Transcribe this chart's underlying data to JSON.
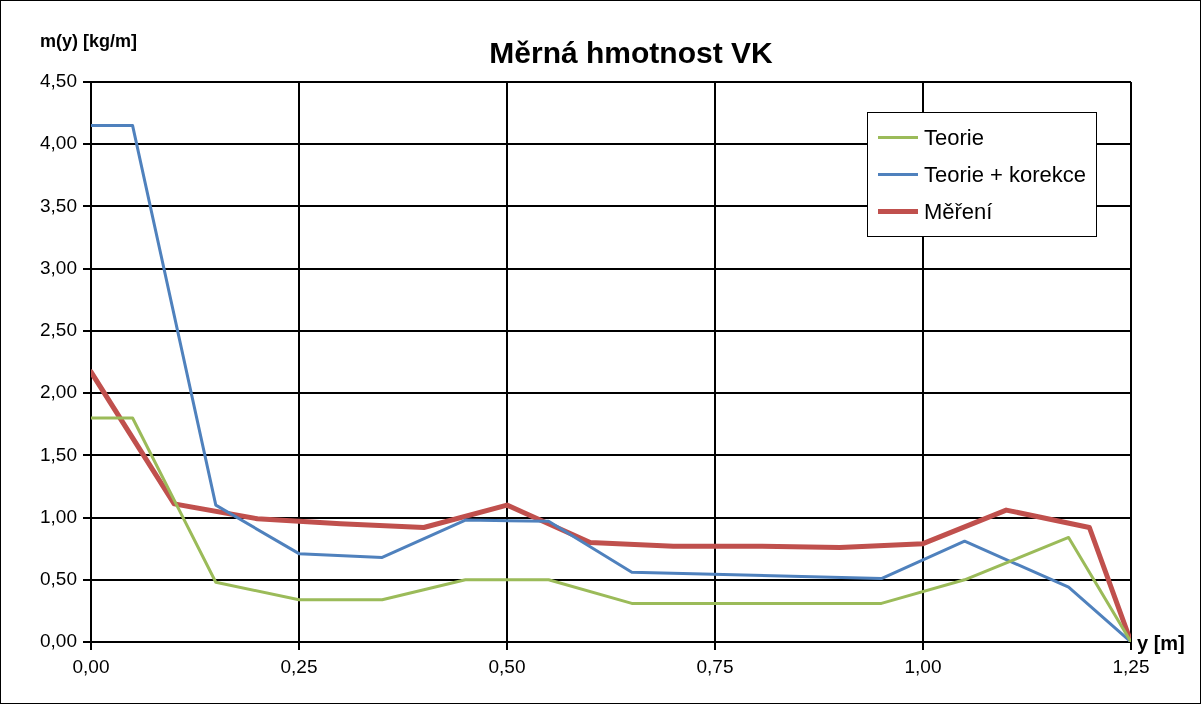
{
  "chart_data": {
    "type": "line",
    "title": "Měrná hmotnost VK",
    "ylabel": "m(y) [kg/m]",
    "xlabel": "y [m]",
    "xlim": [
      0,
      1.25
    ],
    "xticks": [
      {
        "value": 0,
        "label": "0,00"
      },
      {
        "value": 0.25,
        "label": "0,25"
      },
      {
        "value": 0.5,
        "label": "0,50"
      },
      {
        "value": 0.75,
        "label": "0,75"
      },
      {
        "value": 1,
        "label": "1,00"
      },
      {
        "value": 1.25,
        "label": "1,25"
      }
    ],
    "ylim": [
      0,
      4.5
    ],
    "yticks": [
      {
        "value": 0,
        "label": "0,00"
      },
      {
        "value": 0.5,
        "label": "0,50"
      },
      {
        "value": 1,
        "label": "1,00"
      },
      {
        "value": 1.5,
        "label": "1,50"
      },
      {
        "value": 2,
        "label": "2,00"
      },
      {
        "value": 2.5,
        "label": "2,50"
      },
      {
        "value": 3,
        "label": "3,00"
      },
      {
        "value": 3.5,
        "label": "3,50"
      },
      {
        "value": 4,
        "label": "4,00"
      },
      {
        "value": 4.5,
        "label": "4,50"
      }
    ],
    "grid": true,
    "legend": "top right",
    "marker": "none",
    "series": [
      {
        "name": "Teorie",
        "color": "#9bbb59",
        "x": [
          0,
          0.05,
          0.15,
          0.25,
          0.35,
          0.45,
          0.55,
          0.65,
          0.95,
          1.05,
          1.175,
          1.25
        ],
        "values": [
          1.8,
          1.8,
          0.48,
          0.34,
          0.34,
          0.5,
          0.5,
          0.31,
          0.31,
          0.5,
          0.84,
          0
        ]
      },
      {
        "name": "Teorie + korekce",
        "color": "#4f81bd",
        "x": [
          0,
          0.05,
          0.15,
          0.25,
          0.35,
          0.45,
          0.55,
          0.65,
          0.95,
          1.05,
          1.175,
          1.25
        ],
        "values": [
          4.15,
          4.15,
          1.1,
          0.71,
          0.68,
          0.98,
          0.97,
          0.56,
          0.51,
          0.81,
          0.44,
          0
        ]
      },
      {
        "name": "Měření",
        "color": "#c0504d",
        "x": [
          0,
          0.1,
          0.2,
          0.3,
          0.4,
          0.5,
          0.6,
          0.7,
          0.8,
          0.9,
          1.0,
          1.1,
          1.2,
          1.25
        ],
        "values": [
          2.17,
          1.11,
          0.99,
          0.95,
          0.92,
          1.1,
          0.8,
          0.77,
          0.77,
          0.76,
          0.79,
          1.06,
          0.92,
          0
        ]
      }
    ]
  }
}
